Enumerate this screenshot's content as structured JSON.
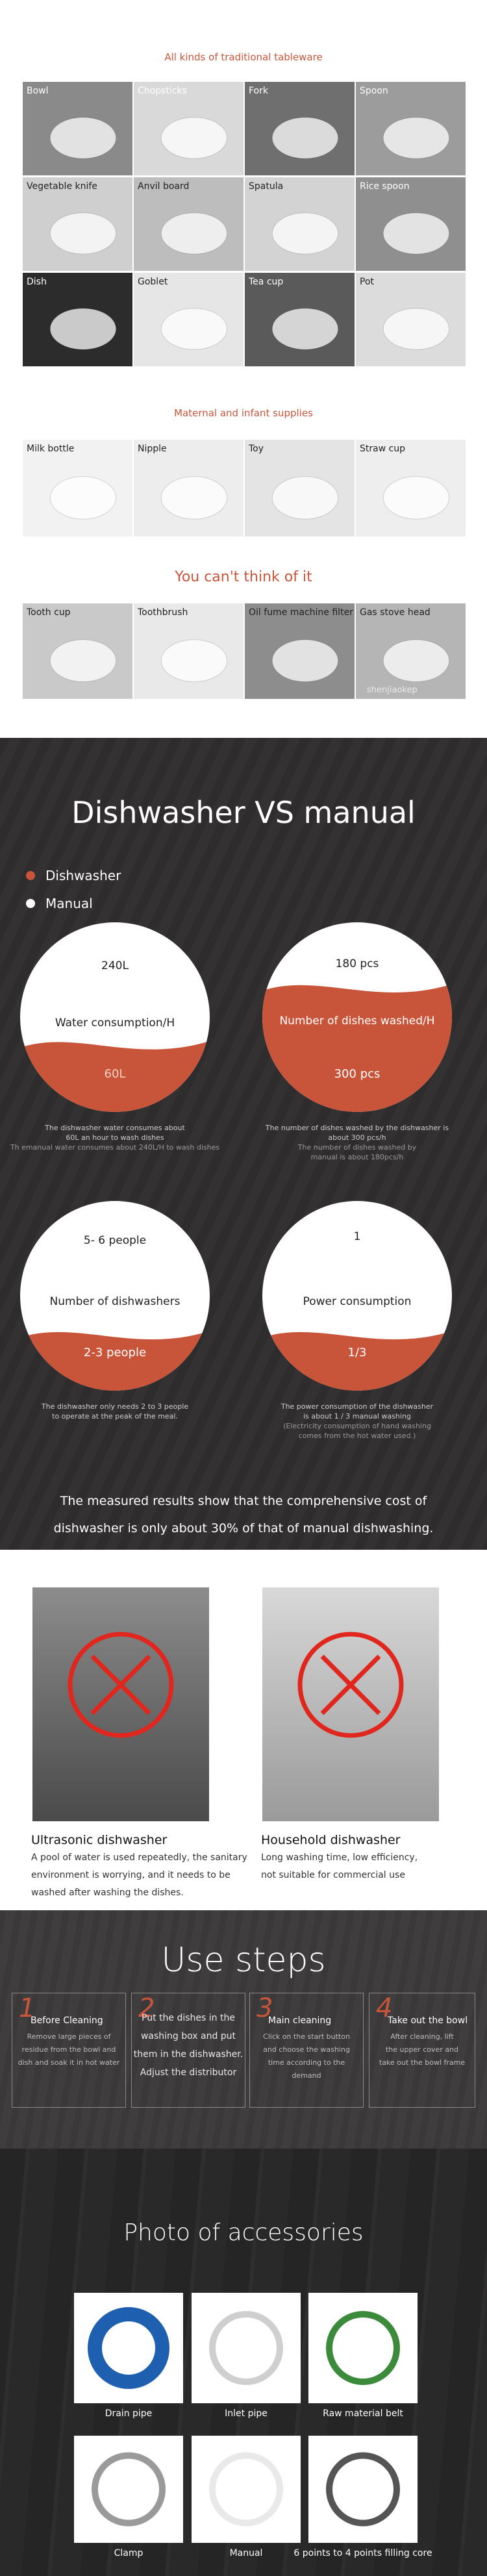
{
  "tableware": {
    "title": "All kinds of traditional tableware",
    "items": [
      "Bowl",
      "Chopsticks",
      "Fork",
      "Spoon",
      "Vegetable knife",
      "Anvil board",
      "Spatula",
      "Rice spoon",
      "Dish",
      "Goblet",
      "Tea  cup",
      "Pot"
    ]
  },
  "infant": {
    "title": "Maternal and infant supplies",
    "items": [
      "Milk bottle",
      "Nipple",
      "Toy",
      "Straw cup"
    ]
  },
  "other": {
    "title": "You can't think of it",
    "items": [
      "Tooth cup",
      "Toothbrush",
      "Oil fume machine filter",
      "Gas stove head"
    ],
    "watermark": "shenjiaokep"
  },
  "comparison": {
    "title": "Dishwasher VS manual",
    "legend": [
      "Dishwasher",
      "Manual"
    ],
    "circles": [
      {
        "top": "240L",
        "middle": "Water consumption/H",
        "bottom": "60L",
        "caption": [
          "The dishwasher water consumes about",
          "60L an hour to wash dishes",
          "Th emanual  water consumes about 240L/H to wash dishes"
        ]
      },
      {
        "top": "180 pcs",
        "middle": "Number of dishes washed/H",
        "bottom": "300 pcs",
        "caption": [
          "The number of dishes washed by the dishwasher is",
          "about 300 pcs/h",
          "The number of dishes washed by",
          "manual is about 180pcs/h"
        ]
      },
      {
        "top": "5- 6 people",
        "middle": "Number of dishwashers",
        "bottom": "2-3 people",
        "caption": [
          "The dishwasher only needs 2 to 3 people",
          "to operate at the peak of the meal."
        ]
      },
      {
        "top": "1",
        "middle": "Power consumption",
        "bottom": "1/3",
        "caption": [
          "The power consumption of the dishwasher",
          "is about 1 / 3 manual washing",
          "(Electricity consumption of hand washing",
          "comes from the hot water used.)"
        ]
      }
    ],
    "summary": "The measured results show that the comprehensive cost of dishwasher is only about 30% of that of manual dishwashing."
  },
  "washers": [
    {
      "title": "Ultrasonic dishwasher",
      "text": [
        "A pool of water is used repeatedly, the sanitary",
        "environment is worrying, and it needs to be",
        "washed after washing the dishes."
      ]
    },
    {
      "title": "Household dishwasher",
      "text": [
        "Long washing time, low efficiency,",
        "not suitable for commercial use"
      ]
    }
  ],
  "steps": {
    "title": "Use steps",
    "items": [
      {
        "num": "1",
        "title": "Before Cleaning",
        "text": [
          "Remove large pieces of",
          "residue from the bowl and",
          "dish and soak it in hot water"
        ]
      },
      {
        "num": "2",
        "text": [
          "Put the dishes in the",
          "washing box and put",
          "them in the dishwasher.",
          "Adjust the distributor"
        ]
      },
      {
        "num": "3",
        "title": "Main cleaning",
        "text": [
          "Click on the start button",
          "and choose the washing",
          "time according to the",
          "demand"
        ]
      },
      {
        "num": "4",
        "title": "Take out the bowl",
        "text": [
          "After cleaning, lift",
          "the upper cover and",
          "take out the bowl frame"
        ]
      }
    ]
  },
  "accessories": {
    "title": "Photo of accessories",
    "items": [
      "Drain pipe",
      "Inlet pipe",
      "Raw material belt",
      "Clamp",
      "Manual",
      "6 points to 4 points  filling core"
    ]
  }
}
